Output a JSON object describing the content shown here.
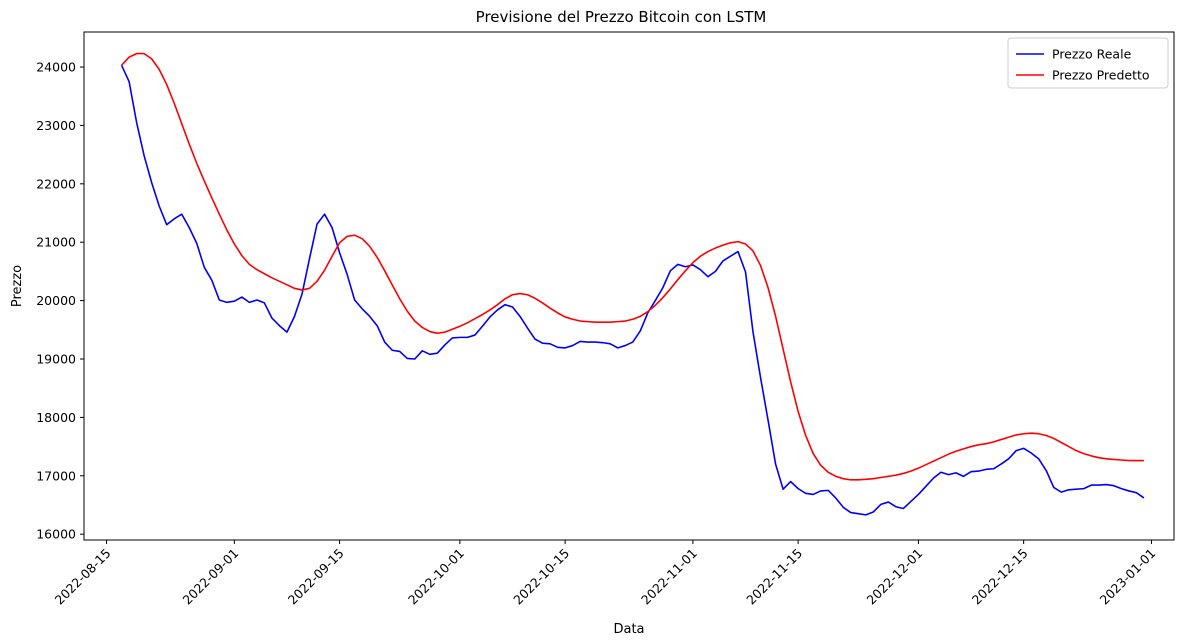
{
  "chart_data": {
    "type": "line",
    "title": "Previsione del Prezzo Bitcoin con LSTM",
    "xlabel": "Data",
    "ylabel": "Prezzo",
    "x_axis_type": "date",
    "xlim": [
      "2022-08-12",
      "2023-01-04"
    ],
    "ylim": [
      15900,
      24600
    ],
    "xticks": [
      "2022-08-15",
      "2022-09-01",
      "2022-09-15",
      "2022-10-01",
      "2022-10-15",
      "2022-11-01",
      "2022-11-15",
      "2022-12-01",
      "2022-12-15",
      "2023-01-01"
    ],
    "yticks": [
      16000,
      17000,
      18000,
      19000,
      20000,
      21000,
      22000,
      23000,
      24000
    ],
    "grid": false,
    "legend_position": "top-right",
    "series": [
      {
        "name": "Prezzo Reale",
        "color": "#0000ff",
        "points": [
          [
            "2022-08-17",
            24030
          ],
          [
            "2022-08-18",
            23750
          ],
          [
            "2022-08-19",
            23050
          ],
          [
            "2022-08-20",
            22480
          ],
          [
            "2022-08-21",
            22020
          ],
          [
            "2022-08-22",
            21620
          ],
          [
            "2022-08-23",
            21300
          ],
          [
            "2022-08-24",
            21400
          ],
          [
            "2022-08-25",
            21480
          ],
          [
            "2022-08-26",
            21250
          ],
          [
            "2022-08-27",
            20980
          ],
          [
            "2022-08-28",
            20570
          ],
          [
            "2022-08-29",
            20350
          ],
          [
            "2022-08-30",
            20010
          ],
          [
            "2022-08-31",
            19970
          ],
          [
            "2022-09-01",
            19990
          ],
          [
            "2022-09-02",
            20060
          ],
          [
            "2022-09-03",
            19970
          ],
          [
            "2022-09-04",
            20010
          ],
          [
            "2022-09-05",
            19960
          ],
          [
            "2022-09-06",
            19700
          ],
          [
            "2022-09-07",
            19570
          ],
          [
            "2022-09-08",
            19460
          ],
          [
            "2022-09-09",
            19730
          ],
          [
            "2022-09-10",
            20110
          ],
          [
            "2022-09-11",
            20720
          ],
          [
            "2022-09-12",
            21310
          ],
          [
            "2022-09-13",
            21480
          ],
          [
            "2022-09-14",
            21250
          ],
          [
            "2022-09-15",
            20820
          ],
          [
            "2022-09-16",
            20450
          ],
          [
            "2022-09-17",
            20010
          ],
          [
            "2022-09-18",
            19860
          ],
          [
            "2022-09-19",
            19730
          ],
          [
            "2022-09-20",
            19570
          ],
          [
            "2022-09-21",
            19290
          ],
          [
            "2022-09-22",
            19150
          ],
          [
            "2022-09-23",
            19130
          ],
          [
            "2022-09-24",
            19010
          ],
          [
            "2022-09-25",
            19000
          ],
          [
            "2022-09-26",
            19140
          ],
          [
            "2022-09-27",
            19080
          ],
          [
            "2022-09-28",
            19100
          ],
          [
            "2022-09-29",
            19240
          ],
          [
            "2022-09-30",
            19360
          ],
          [
            "2022-10-01",
            19370
          ],
          [
            "2022-10-02",
            19370
          ],
          [
            "2022-10-03",
            19410
          ],
          [
            "2022-10-04",
            19560
          ],
          [
            "2022-10-05",
            19720
          ],
          [
            "2022-10-06",
            19840
          ],
          [
            "2022-10-07",
            19930
          ],
          [
            "2022-10-08",
            19890
          ],
          [
            "2022-10-09",
            19730
          ],
          [
            "2022-10-10",
            19530
          ],
          [
            "2022-10-11",
            19340
          ],
          [
            "2022-10-12",
            19270
          ],
          [
            "2022-10-13",
            19260
          ],
          [
            "2022-10-14",
            19200
          ],
          [
            "2022-10-15",
            19190
          ],
          [
            "2022-10-16",
            19230
          ],
          [
            "2022-10-17",
            19300
          ],
          [
            "2022-10-18",
            19290
          ],
          [
            "2022-10-19",
            19290
          ],
          [
            "2022-10-20",
            19280
          ],
          [
            "2022-10-21",
            19260
          ],
          [
            "2022-10-22",
            19190
          ],
          [
            "2022-10-23",
            19230
          ],
          [
            "2022-10-24",
            19290
          ],
          [
            "2022-10-25",
            19480
          ],
          [
            "2022-10-26",
            19790
          ],
          [
            "2022-10-27",
            20000
          ],
          [
            "2022-10-28",
            20220
          ],
          [
            "2022-10-29",
            20510
          ],
          [
            "2022-10-30",
            20620
          ],
          [
            "2022-10-31",
            20580
          ],
          [
            "2022-11-01",
            20610
          ],
          [
            "2022-11-02",
            20530
          ],
          [
            "2022-11-03",
            20410
          ],
          [
            "2022-11-04",
            20500
          ],
          [
            "2022-11-05",
            20680
          ],
          [
            "2022-11-06",
            20760
          ],
          [
            "2022-11-07",
            20840
          ],
          [
            "2022-11-08",
            20490
          ],
          [
            "2022-11-09",
            19460
          ],
          [
            "2022-11-10",
            18680
          ],
          [
            "2022-11-11",
            17950
          ],
          [
            "2022-11-12",
            17200
          ],
          [
            "2022-11-13",
            16770
          ],
          [
            "2022-11-14",
            16900
          ],
          [
            "2022-11-15",
            16780
          ],
          [
            "2022-11-16",
            16700
          ],
          [
            "2022-11-17",
            16680
          ],
          [
            "2022-11-18",
            16740
          ],
          [
            "2022-11-19",
            16750
          ],
          [
            "2022-11-20",
            16620
          ],
          [
            "2022-11-21",
            16460
          ],
          [
            "2022-11-22",
            16370
          ],
          [
            "2022-11-23",
            16350
          ],
          [
            "2022-11-24",
            16330
          ],
          [
            "2022-11-25",
            16380
          ],
          [
            "2022-11-26",
            16510
          ],
          [
            "2022-11-27",
            16550
          ],
          [
            "2022-11-28",
            16470
          ],
          [
            "2022-11-29",
            16440
          ],
          [
            "2022-11-30",
            16560
          ],
          [
            "2022-12-01",
            16680
          ],
          [
            "2022-12-02",
            16820
          ],
          [
            "2022-12-03",
            16960
          ],
          [
            "2022-12-04",
            17060
          ],
          [
            "2022-12-05",
            17020
          ],
          [
            "2022-12-06",
            17050
          ],
          [
            "2022-12-07",
            16990
          ],
          [
            "2022-12-08",
            17070
          ],
          [
            "2022-12-09",
            17080
          ],
          [
            "2022-12-10",
            17110
          ],
          [
            "2022-12-11",
            17120
          ],
          [
            "2022-12-12",
            17200
          ],
          [
            "2022-12-13",
            17290
          ],
          [
            "2022-12-14",
            17430
          ],
          [
            "2022-12-15",
            17470
          ],
          [
            "2022-12-16",
            17390
          ],
          [
            "2022-12-17",
            17290
          ],
          [
            "2022-12-18",
            17090
          ],
          [
            "2022-12-19",
            16800
          ],
          [
            "2022-12-20",
            16720
          ],
          [
            "2022-12-21",
            16760
          ],
          [
            "2022-12-22",
            16770
          ],
          [
            "2022-12-23",
            16780
          ],
          [
            "2022-12-24",
            16840
          ],
          [
            "2022-12-25",
            16840
          ],
          [
            "2022-12-26",
            16850
          ],
          [
            "2022-12-27",
            16830
          ],
          [
            "2022-12-28",
            16780
          ],
          [
            "2022-12-29",
            16740
          ],
          [
            "2022-12-30",
            16710
          ],
          [
            "2022-12-31",
            16620
          ]
        ]
      },
      {
        "name": "Prezzo Predetto",
        "color": "#ff0000",
        "points": [
          [
            "2022-08-17",
            24030
          ],
          [
            "2022-08-18",
            24170
          ],
          [
            "2022-08-19",
            24230
          ],
          [
            "2022-08-20",
            24230
          ],
          [
            "2022-08-21",
            24140
          ],
          [
            "2022-08-22",
            23960
          ],
          [
            "2022-08-23",
            23700
          ],
          [
            "2022-08-24",
            23380
          ],
          [
            "2022-08-25",
            23030
          ],
          [
            "2022-08-26",
            22680
          ],
          [
            "2022-08-27",
            22350
          ],
          [
            "2022-08-28",
            22050
          ],
          [
            "2022-08-29",
            21760
          ],
          [
            "2022-08-30",
            21480
          ],
          [
            "2022-08-31",
            21210
          ],
          [
            "2022-09-01",
            20970
          ],
          [
            "2022-09-02",
            20770
          ],
          [
            "2022-09-03",
            20620
          ],
          [
            "2022-09-04",
            20530
          ],
          [
            "2022-09-05",
            20460
          ],
          [
            "2022-09-06",
            20390
          ],
          [
            "2022-09-07",
            20330
          ],
          [
            "2022-09-08",
            20270
          ],
          [
            "2022-09-09",
            20210
          ],
          [
            "2022-09-10",
            20180
          ],
          [
            "2022-09-11",
            20210
          ],
          [
            "2022-09-12",
            20330
          ],
          [
            "2022-09-13",
            20520
          ],
          [
            "2022-09-14",
            20760
          ],
          [
            "2022-09-15",
            20990
          ],
          [
            "2022-09-16",
            21100
          ],
          [
            "2022-09-17",
            21120
          ],
          [
            "2022-09-18",
            21060
          ],
          [
            "2022-09-19",
            20930
          ],
          [
            "2022-09-20",
            20740
          ],
          [
            "2022-09-21",
            20510
          ],
          [
            "2022-09-22",
            20270
          ],
          [
            "2022-09-23",
            20030
          ],
          [
            "2022-09-24",
            19820
          ],
          [
            "2022-09-25",
            19650
          ],
          [
            "2022-09-26",
            19540
          ],
          [
            "2022-09-27",
            19470
          ],
          [
            "2022-09-28",
            19440
          ],
          [
            "2022-09-29",
            19460
          ],
          [
            "2022-09-30",
            19510
          ],
          [
            "2022-10-01",
            19560
          ],
          [
            "2022-10-02",
            19620
          ],
          [
            "2022-10-03",
            19690
          ],
          [
            "2022-10-04",
            19760
          ],
          [
            "2022-10-05",
            19840
          ],
          [
            "2022-10-06",
            19930
          ],
          [
            "2022-10-07",
            20030
          ],
          [
            "2022-10-08",
            20100
          ],
          [
            "2022-10-09",
            20120
          ],
          [
            "2022-10-10",
            20100
          ],
          [
            "2022-10-11",
            20040
          ],
          [
            "2022-10-12",
            19960
          ],
          [
            "2022-10-13",
            19870
          ],
          [
            "2022-10-14",
            19790
          ],
          [
            "2022-10-15",
            19720
          ],
          [
            "2022-10-16",
            19680
          ],
          [
            "2022-10-17",
            19650
          ],
          [
            "2022-10-18",
            19640
          ],
          [
            "2022-10-19",
            19630
          ],
          [
            "2022-10-20",
            19630
          ],
          [
            "2022-10-21",
            19630
          ],
          [
            "2022-10-22",
            19640
          ],
          [
            "2022-10-23",
            19650
          ],
          [
            "2022-10-24",
            19680
          ],
          [
            "2022-10-25",
            19730
          ],
          [
            "2022-10-26",
            19810
          ],
          [
            "2022-10-27",
            19920
          ],
          [
            "2022-10-28",
            20050
          ],
          [
            "2022-10-29",
            20200
          ],
          [
            "2022-10-30",
            20360
          ],
          [
            "2022-10-31",
            20510
          ],
          [
            "2022-11-01",
            20650
          ],
          [
            "2022-11-02",
            20760
          ],
          [
            "2022-11-03",
            20840
          ],
          [
            "2022-11-04",
            20900
          ],
          [
            "2022-11-05",
            20950
          ],
          [
            "2022-11-06",
            20990
          ],
          [
            "2022-11-07",
            21010
          ],
          [
            "2022-11-08",
            20970
          ],
          [
            "2022-11-09",
            20850
          ],
          [
            "2022-11-10",
            20600
          ],
          [
            "2022-11-11",
            20220
          ],
          [
            "2022-11-12",
            19730
          ],
          [
            "2022-11-13",
            19170
          ],
          [
            "2022-11-14",
            18610
          ],
          [
            "2022-11-15",
            18100
          ],
          [
            "2022-11-16",
            17690
          ],
          [
            "2022-11-17",
            17380
          ],
          [
            "2022-11-18",
            17180
          ],
          [
            "2022-11-19",
            17060
          ],
          [
            "2022-11-20",
            16990
          ],
          [
            "2022-11-21",
            16950
          ],
          [
            "2022-11-22",
            16930
          ],
          [
            "2022-11-23",
            16930
          ],
          [
            "2022-11-24",
            16940
          ],
          [
            "2022-11-25",
            16950
          ],
          [
            "2022-11-26",
            16970
          ],
          [
            "2022-11-27",
            16990
          ],
          [
            "2022-11-28",
            17010
          ],
          [
            "2022-11-29",
            17040
          ],
          [
            "2022-11-30",
            17080
          ],
          [
            "2022-12-01",
            17130
          ],
          [
            "2022-12-02",
            17190
          ],
          [
            "2022-12-03",
            17250
          ],
          [
            "2022-12-04",
            17310
          ],
          [
            "2022-12-05",
            17370
          ],
          [
            "2022-12-06",
            17420
          ],
          [
            "2022-12-07",
            17460
          ],
          [
            "2022-12-08",
            17500
          ],
          [
            "2022-12-09",
            17530
          ],
          [
            "2022-12-10",
            17550
          ],
          [
            "2022-12-11",
            17580
          ],
          [
            "2022-12-12",
            17620
          ],
          [
            "2022-12-13",
            17660
          ],
          [
            "2022-12-14",
            17700
          ],
          [
            "2022-12-15",
            17720
          ],
          [
            "2022-12-16",
            17730
          ],
          [
            "2022-12-17",
            17720
          ],
          [
            "2022-12-18",
            17690
          ],
          [
            "2022-12-19",
            17640
          ],
          [
            "2022-12-20",
            17570
          ],
          [
            "2022-12-21",
            17500
          ],
          [
            "2022-12-22",
            17430
          ],
          [
            "2022-12-23",
            17380
          ],
          [
            "2022-12-24",
            17340
          ],
          [
            "2022-12-25",
            17310
          ],
          [
            "2022-12-26",
            17290
          ],
          [
            "2022-12-27",
            17280
          ],
          [
            "2022-12-28",
            17270
          ],
          [
            "2022-12-29",
            17260
          ],
          [
            "2022-12-30",
            17260
          ],
          [
            "2022-12-31",
            17260
          ]
        ]
      }
    ]
  }
}
